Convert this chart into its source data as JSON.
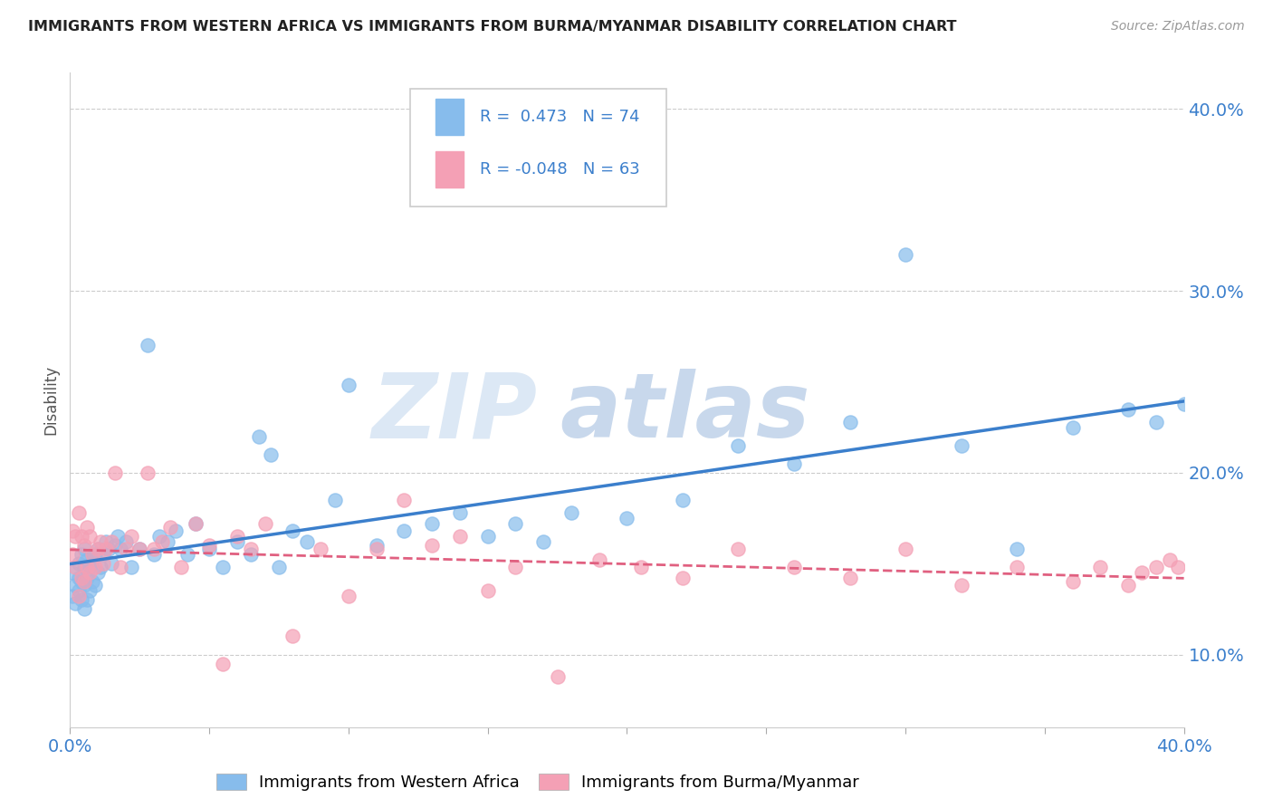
{
  "title": "IMMIGRANTS FROM WESTERN AFRICA VS IMMIGRANTS FROM BURMA/MYANMAR DISABILITY CORRELATION CHART",
  "source": "Source: ZipAtlas.com",
  "ylabel": "Disability",
  "xlim": [
    0.0,
    0.4
  ],
  "ylim": [
    0.06,
    0.42
  ],
  "blue_R": 0.473,
  "blue_N": 74,
  "pink_R": -0.048,
  "pink_N": 63,
  "blue_color": "#87BCEC",
  "pink_color": "#F4A0B5",
  "blue_line_color": "#3B7FCC",
  "pink_line_color": "#E06080",
  "legend1": "Immigrants from Western Africa",
  "legend2": "Immigrants from Burma/Myanmar",
  "ytick_positions": [
    0.1,
    0.2,
    0.3,
    0.4
  ],
  "ytick_labels": [
    "10.0%",
    "20.0%",
    "30.0%",
    "40.0%"
  ],
  "blue_x": [
    0.001,
    0.001,
    0.002,
    0.002,
    0.003,
    0.003,
    0.003,
    0.004,
    0.004,
    0.004,
    0.005,
    0.005,
    0.005,
    0.005,
    0.006,
    0.006,
    0.006,
    0.007,
    0.007,
    0.008,
    0.008,
    0.009,
    0.009,
    0.01,
    0.01,
    0.011,
    0.012,
    0.013,
    0.014,
    0.015,
    0.016,
    0.017,
    0.018,
    0.02,
    0.022,
    0.025,
    0.028,
    0.03,
    0.032,
    0.035,
    0.038,
    0.042,
    0.045,
    0.05,
    0.055,
    0.06,
    0.065,
    0.068,
    0.072,
    0.075,
    0.08,
    0.085,
    0.095,
    0.1,
    0.11,
    0.12,
    0.13,
    0.14,
    0.15,
    0.16,
    0.17,
    0.18,
    0.2,
    0.22,
    0.24,
    0.26,
    0.28,
    0.3,
    0.32,
    0.34,
    0.36,
    0.38,
    0.39,
    0.4
  ],
  "blue_y": [
    0.132,
    0.145,
    0.128,
    0.138,
    0.135,
    0.142,
    0.15,
    0.13,
    0.14,
    0.155,
    0.125,
    0.138,
    0.148,
    0.158,
    0.13,
    0.142,
    0.152,
    0.135,
    0.148,
    0.14,
    0.152,
    0.138,
    0.155,
    0.145,
    0.158,
    0.148,
    0.155,
    0.162,
    0.158,
    0.15,
    0.16,
    0.165,
    0.158,
    0.162,
    0.148,
    0.158,
    0.27,
    0.155,
    0.165,
    0.162,
    0.168,
    0.155,
    0.172,
    0.158,
    0.148,
    0.162,
    0.155,
    0.22,
    0.21,
    0.148,
    0.168,
    0.162,
    0.185,
    0.248,
    0.16,
    0.168,
    0.172,
    0.178,
    0.165,
    0.172,
    0.162,
    0.178,
    0.175,
    0.185,
    0.215,
    0.205,
    0.228,
    0.32,
    0.215,
    0.158,
    0.225,
    0.235,
    0.228,
    0.238
  ],
  "pink_x": [
    0.001,
    0.001,
    0.002,
    0.002,
    0.003,
    0.003,
    0.004,
    0.004,
    0.005,
    0.005,
    0.006,
    0.006,
    0.007,
    0.007,
    0.008,
    0.009,
    0.01,
    0.011,
    0.012,
    0.013,
    0.015,
    0.016,
    0.018,
    0.02,
    0.022,
    0.025,
    0.028,
    0.03,
    0.033,
    0.036,
    0.04,
    0.045,
    0.05,
    0.055,
    0.06,
    0.065,
    0.07,
    0.08,
    0.09,
    0.1,
    0.11,
    0.12,
    0.13,
    0.14,
    0.15,
    0.16,
    0.175,
    0.19,
    0.205,
    0.22,
    0.24,
    0.26,
    0.28,
    0.3,
    0.32,
    0.34,
    0.36,
    0.37,
    0.38,
    0.385,
    0.39,
    0.395,
    0.398
  ],
  "pink_y": [
    0.155,
    0.168,
    0.148,
    0.165,
    0.132,
    0.178,
    0.142,
    0.165,
    0.14,
    0.16,
    0.148,
    0.17,
    0.145,
    0.165,
    0.155,
    0.148,
    0.158,
    0.162,
    0.15,
    0.158,
    0.162,
    0.2,
    0.148,
    0.158,
    0.165,
    0.158,
    0.2,
    0.158,
    0.162,
    0.17,
    0.148,
    0.172,
    0.16,
    0.095,
    0.165,
    0.158,
    0.172,
    0.11,
    0.158,
    0.132,
    0.158,
    0.185,
    0.16,
    0.165,
    0.135,
    0.148,
    0.088,
    0.152,
    0.148,
    0.142,
    0.158,
    0.148,
    0.142,
    0.158,
    0.138,
    0.148,
    0.14,
    0.148,
    0.138,
    0.145,
    0.148,
    0.152,
    0.148
  ]
}
